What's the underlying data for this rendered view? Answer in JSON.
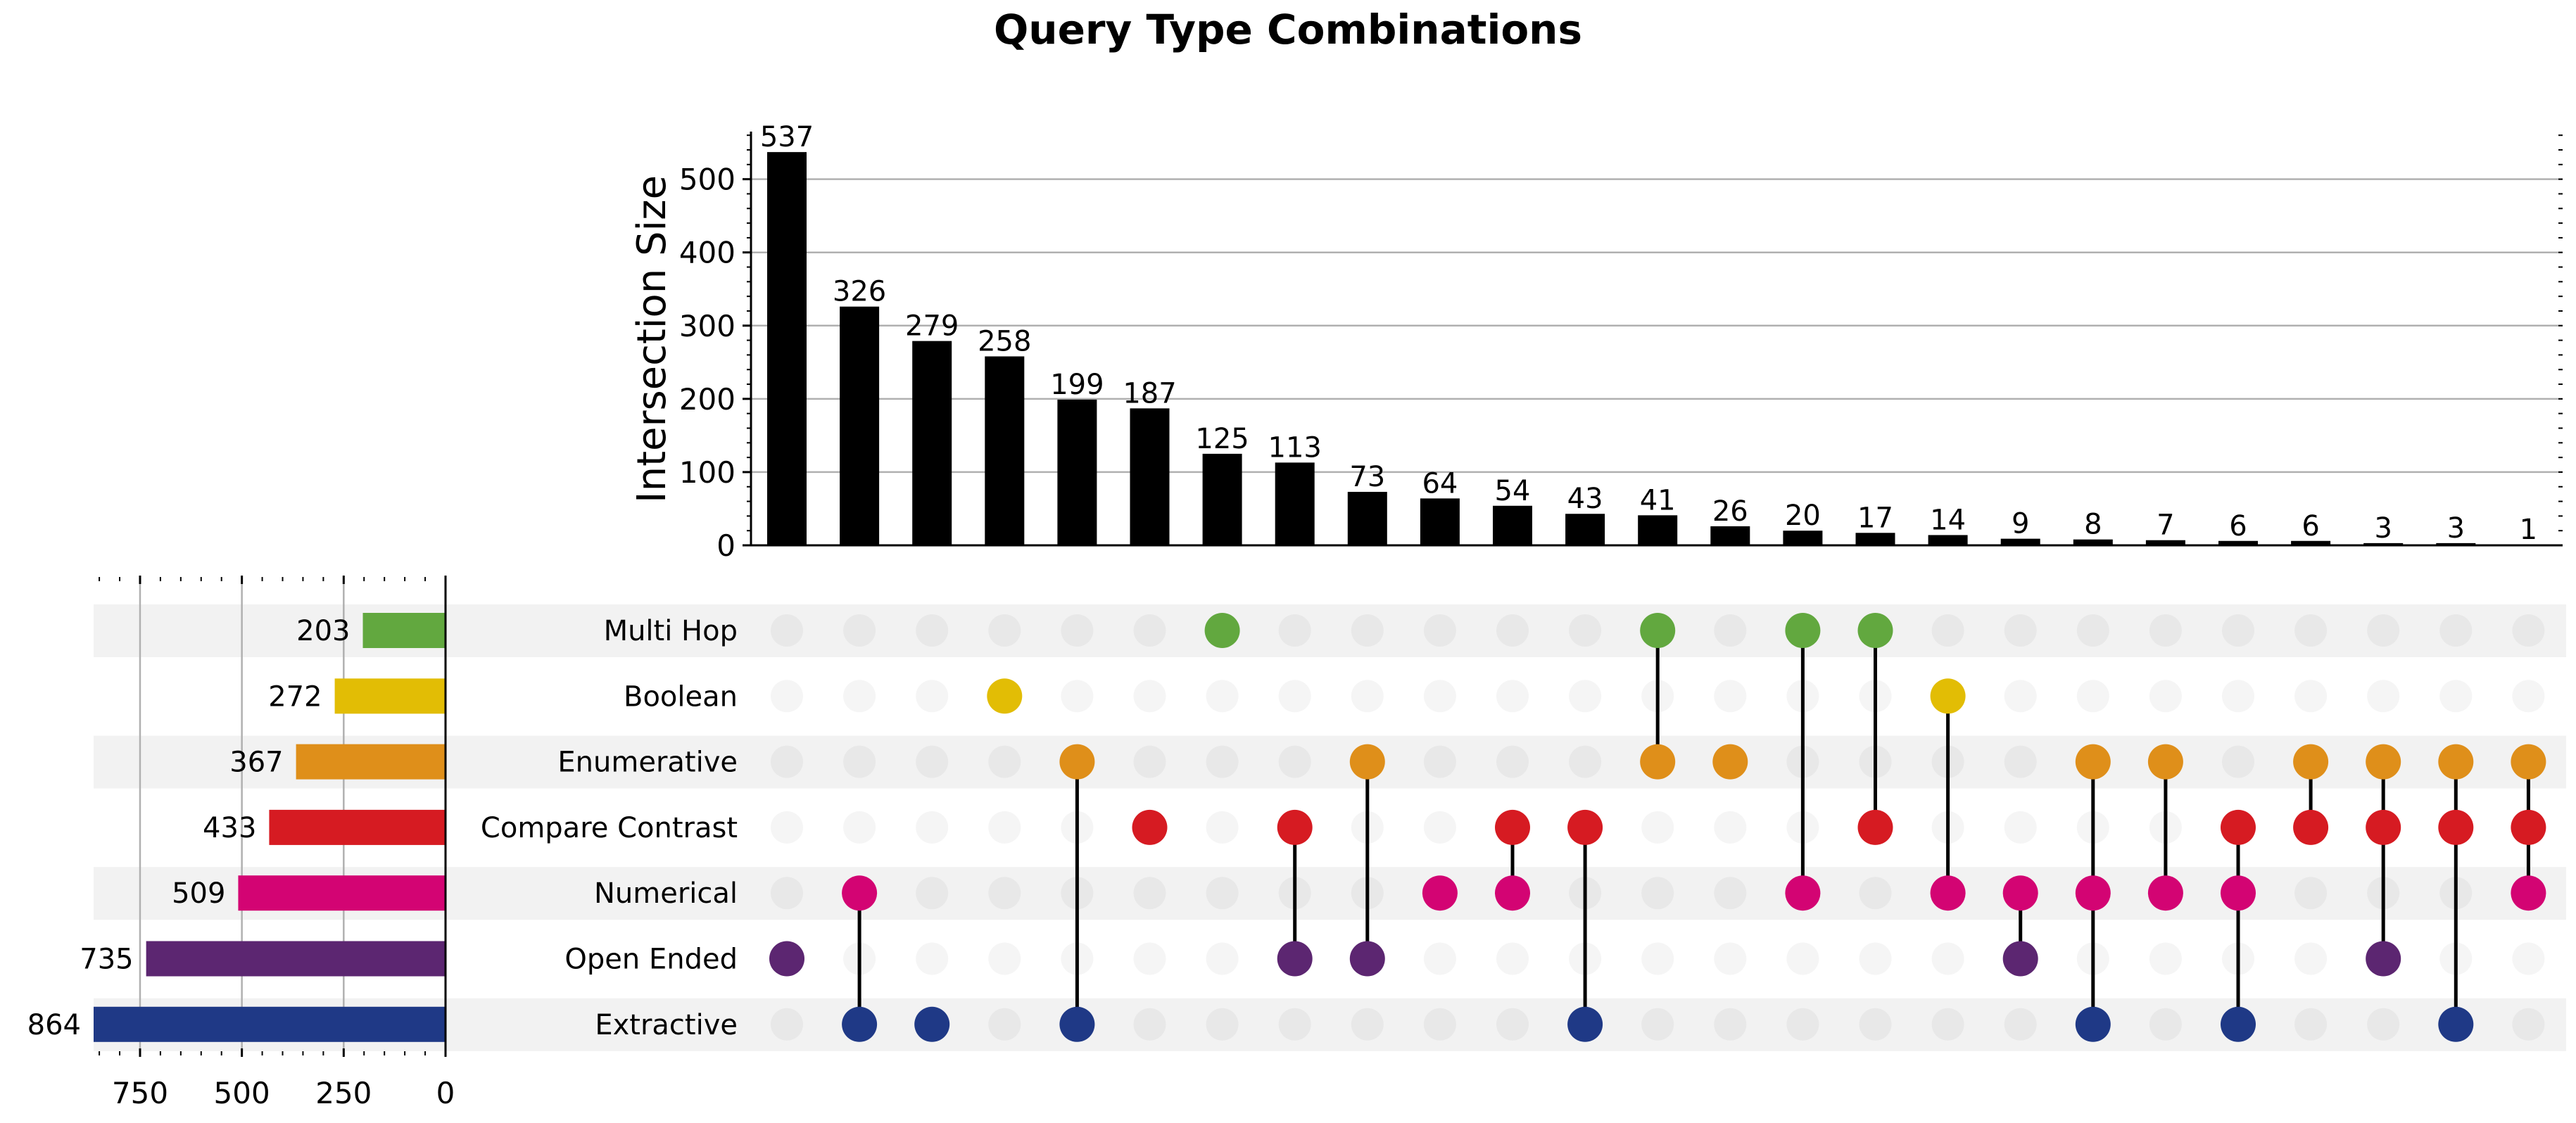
{
  "chart_data": {
    "type": "upset",
    "title": "Query Type Combinations",
    "ylabel": "Intersection Size",
    "ylim": [
      0,
      565
    ],
    "yticks": [
      0,
      100,
      200,
      300,
      400,
      500
    ],
    "grid": true,
    "sets": [
      {
        "name": "Multi Hop",
        "size": 203,
        "color": "#62a83f"
      },
      {
        "name": "Boolean",
        "size": 272,
        "color": "#e2bd05"
      },
      {
        "name": "Enumerative",
        "size": 367,
        "color": "#df8f1a"
      },
      {
        "name": "Compare Contrast",
        "size": 433,
        "color": "#d61b22"
      },
      {
        "name": "Numerical",
        "size": 509,
        "color": "#d30473"
      },
      {
        "name": "Open Ended",
        "size": 735,
        "color": "#5c2671"
      },
      {
        "name": "Extractive",
        "size": 864,
        "color": "#1f3986"
      }
    ],
    "set_size_ticks": [
      750,
      500,
      250,
      0
    ],
    "set_size_xlim": [
      864,
      0
    ],
    "intersections": [
      {
        "value": 537,
        "members": [
          "Open Ended"
        ]
      },
      {
        "value": 326,
        "members": [
          "Numerical",
          "Extractive"
        ]
      },
      {
        "value": 279,
        "members": [
          "Extractive"
        ]
      },
      {
        "value": 258,
        "members": [
          "Boolean"
        ]
      },
      {
        "value": 199,
        "members": [
          "Enumerative",
          "Extractive"
        ]
      },
      {
        "value": 187,
        "members": [
          "Compare Contrast"
        ]
      },
      {
        "value": 125,
        "members": [
          "Multi Hop"
        ]
      },
      {
        "value": 113,
        "members": [
          "Compare Contrast",
          "Open Ended"
        ]
      },
      {
        "value": 73,
        "members": [
          "Enumerative",
          "Open Ended"
        ]
      },
      {
        "value": 64,
        "members": [
          "Numerical"
        ]
      },
      {
        "value": 54,
        "members": [
          "Compare Contrast",
          "Numerical"
        ]
      },
      {
        "value": 43,
        "members": [
          "Compare Contrast",
          "Extractive"
        ]
      },
      {
        "value": 41,
        "members": [
          "Multi Hop",
          "Enumerative"
        ]
      },
      {
        "value": 26,
        "members": [
          "Enumerative"
        ]
      },
      {
        "value": 20,
        "members": [
          "Multi Hop",
          "Numerical"
        ]
      },
      {
        "value": 17,
        "members": [
          "Multi Hop",
          "Compare Contrast"
        ]
      },
      {
        "value": 14,
        "members": [
          "Boolean",
          "Numerical"
        ]
      },
      {
        "value": 9,
        "members": [
          "Numerical",
          "Open Ended"
        ]
      },
      {
        "value": 8,
        "members": [
          "Enumerative",
          "Numerical",
          "Extractive"
        ]
      },
      {
        "value": 7,
        "members": [
          "Enumerative",
          "Numerical"
        ]
      },
      {
        "value": 6,
        "members": [
          "Compare Contrast",
          "Numerical",
          "Extractive"
        ]
      },
      {
        "value": 6,
        "members": [
          "Enumerative",
          "Compare Contrast"
        ]
      },
      {
        "value": 3,
        "members": [
          "Enumerative",
          "Compare Contrast",
          "Open Ended"
        ]
      },
      {
        "value": 3,
        "members": [
          "Enumerative",
          "Compare Contrast",
          "Extractive"
        ]
      },
      {
        "value": 1,
        "members": [
          "Enumerative",
          "Compare Contrast",
          "Numerical"
        ]
      }
    ],
    "bar_color": "#000000",
    "inactive_dot_color": "#ebebeb",
    "band_color": "#f2f2f2"
  }
}
